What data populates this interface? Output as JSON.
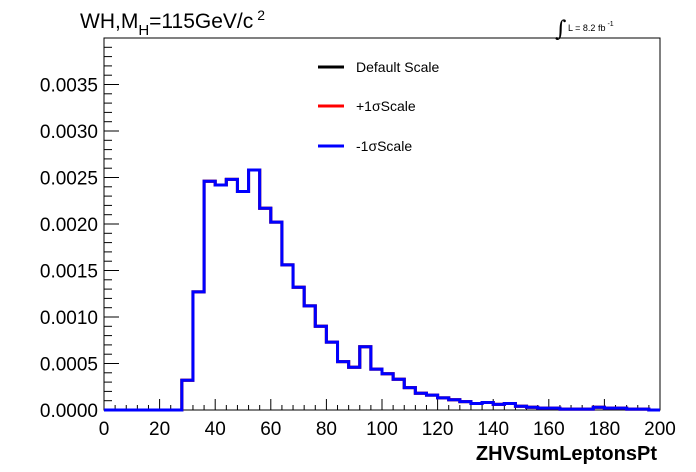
{
  "chart_data": {
    "type": "line",
    "title_main": "WH,M",
    "title_sub": "H",
    "title_rest": "=115GeV/c",
    "title_sup": "2",
    "lumi_integral": "∫",
    "lumi_text": "L = 8.2 fb",
    "lumi_sup": "-1",
    "xlabel": "ZHVSumLeptonsPt",
    "ylabel": "",
    "xlim": [
      0,
      200
    ],
    "ylim": [
      0,
      0.004
    ],
    "x_ticks": [
      0,
      20,
      40,
      60,
      80,
      100,
      120,
      140,
      160,
      180,
      200
    ],
    "x_tick_labels": [
      "0",
      "20",
      "40",
      "60",
      "80",
      "100",
      "120",
      "140",
      "160",
      "180",
      "200"
    ],
    "y_ticks": [
      0,
      0.0005,
      0.001,
      0.0015,
      0.002,
      0.0025,
      0.003,
      0.0035
    ],
    "y_tick_labels": [
      "0.0000",
      "0.0005",
      "0.0010",
      "0.0015",
      "0.0020",
      "0.0025",
      "0.0030",
      "0.0035"
    ],
    "bin_width": 4,
    "bin_edges_start": 0,
    "legend_position": "top-center",
    "series": [
      {
        "name": "Default Scale",
        "color": "#000000"
      },
      {
        "name": "+1σScale",
        "color": "#ff0000"
      },
      {
        "name": "-1σScale",
        "color": "#0000ff"
      }
    ],
    "values": [
      0,
      0,
      0,
      0,
      0,
      0,
      0,
      0.00032,
      0.00127,
      0.00246,
      0.00242,
      0.00248,
      0.00235,
      0.00258,
      0.00217,
      0.00202,
      0.00156,
      0.00132,
      0.00112,
      0.0009,
      0.00073,
      0.00052,
      0.00046,
      0.00068,
      0.00044,
      0.00039,
      0.00033,
      0.00024,
      0.00018,
      0.00016,
      0.00013,
      0.00011,
      9e-05,
      7e-05,
      8e-05,
      6e-05,
      7e-05,
      4e-05,
      3e-05,
      2e-05,
      2e-05,
      1e-05,
      1e-05,
      1e-05,
      3e-05,
      2e-05,
      2e-05,
      1e-05,
      1e-05,
      0.0
    ]
  }
}
